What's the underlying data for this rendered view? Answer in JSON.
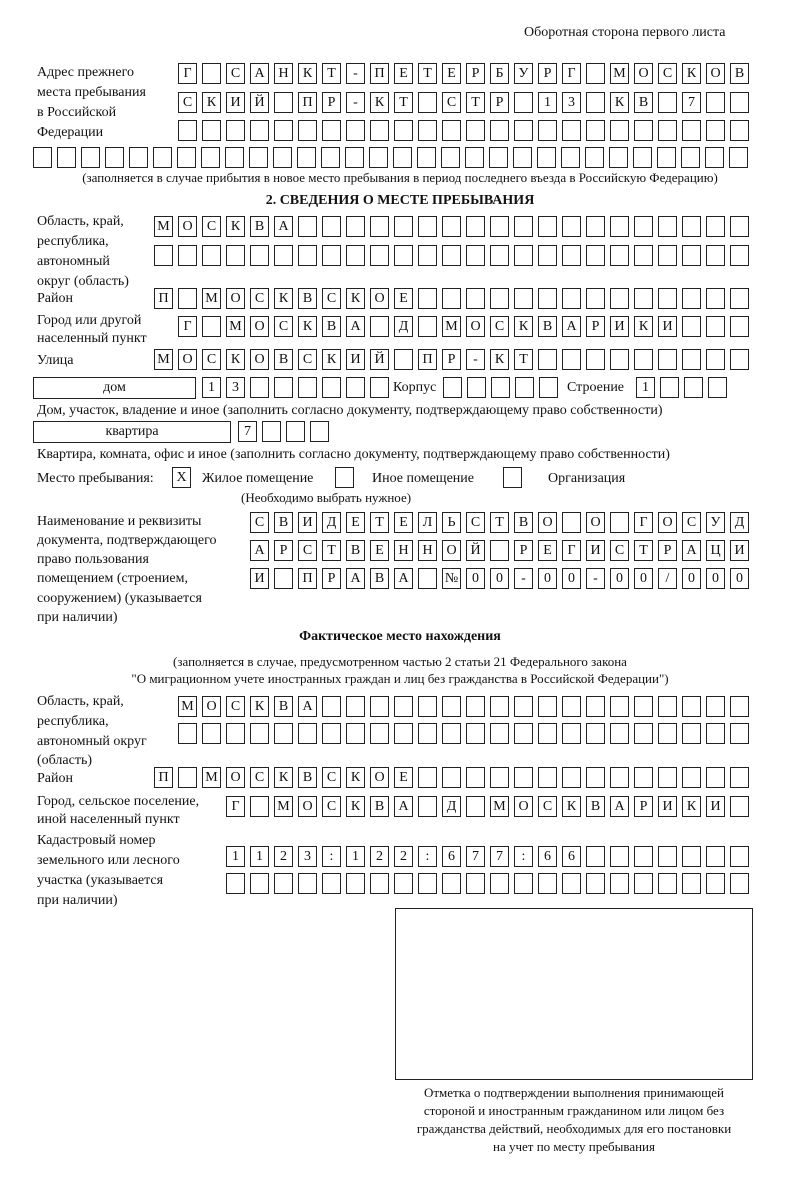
{
  "header": "Оборотная сторона первого листа",
  "prev_address": {
    "label": [
      "Адрес прежнего",
      "места пребывания",
      "в Российской",
      "Федерации"
    ],
    "rows": [
      [
        "Г",
        "",
        "С",
        "А",
        "Н",
        "К",
        "Т",
        "-",
        "П",
        "Е",
        "Т",
        "Е",
        "Р",
        "Б",
        "У",
        "Р",
        "Г",
        "",
        "М",
        "О",
        "С",
        "К",
        "О",
        "В"
      ],
      [
        "С",
        "К",
        "И",
        "Й",
        "",
        "П",
        "Р",
        "-",
        "К",
        "Т",
        "",
        "С",
        "Т",
        "Р",
        "",
        "1",
        "3",
        "",
        "К",
        "В",
        "",
        "7",
        "",
        ""
      ],
      [
        "",
        "",
        "",
        "",
        "",
        "",
        "",
        "",
        "",
        "",
        "",
        "",
        "",
        "",
        "",
        "",
        "",
        "",
        "",
        "",
        "",
        "",
        "",
        ""
      ],
      [
        "",
        "",
        "",
        "",
        "",
        "",
        "",
        "",
        "",
        "",
        "",
        "",
        "",
        "",
        "",
        "",
        "",
        "",
        "",
        "",
        "",
        "",
        "",
        "",
        "",
        "",
        "",
        "",
        "",
        ""
      ]
    ],
    "note": "(заполняется в случае прибытия в новое место пребывания в период последнего въезда в Российскую Федерацию)"
  },
  "section2": {
    "title": "2. СВЕДЕНИЯ О МЕСТЕ ПРЕБЫВАНИЯ",
    "region_label": [
      "Область, край,",
      "республика,",
      "автономный",
      "округ (область)"
    ],
    "region_rows": [
      [
        "М",
        "О",
        "С",
        "К",
        "В",
        "А",
        "",
        "",
        "",
        "",
        "",
        "",
        "",
        "",
        "",
        "",
        "",
        "",
        "",
        "",
        "",
        "",
        "",
        "",
        ""
      ],
      [
        "",
        "",
        "",
        "",
        "",
        "",
        "",
        "",
        "",
        "",
        "",
        "",
        "",
        "",
        "",
        "",
        "",
        "",
        "",
        "",
        "",
        "",
        "",
        "",
        ""
      ]
    ],
    "district_label": "Район",
    "district": [
      "П",
      "",
      "М",
      "О",
      "С",
      "К",
      "В",
      "С",
      "К",
      "О",
      "Е",
      "",
      "",
      "",
      "",
      "",
      "",
      "",
      "",
      "",
      "",
      "",
      "",
      "",
      ""
    ],
    "city_label": [
      "Город или другой",
      "населенный пункт"
    ],
    "city": [
      "Г",
      "",
      "М",
      "О",
      "С",
      "К",
      "В",
      "А",
      "",
      "Д",
      "",
      "М",
      "О",
      "С",
      "К",
      "В",
      "А",
      "Р",
      "И",
      "К",
      "И",
      "",
      "",
      ""
    ],
    "street_label": "Улица",
    "street": [
      "М",
      "О",
      "С",
      "К",
      "О",
      "В",
      "С",
      "К",
      "И",
      "Й",
      "",
      "П",
      "Р",
      "-",
      "К",
      "Т",
      "",
      "",
      "",
      "",
      "",
      "",
      "",
      "",
      ""
    ],
    "house_type": "дом",
    "house": [
      "1",
      "3",
      "",
      "",
      "",
      "",
      "",
      ""
    ],
    "korpus_label": "Корпус",
    "korpus": [
      "",
      "",
      "",
      "",
      ""
    ],
    "stroenie_label": "Строение",
    "stroenie": [
      "1",
      "",
      "",
      ""
    ],
    "house_note": "Дом, участок, владение и иное (заполнить согласно документу, подтверждающему право собственности)",
    "flat_type": "квартира",
    "flat": [
      "7",
      "",
      "",
      ""
    ],
    "flat_note": "Квартира, комната, офис и иное (заполнить согласно документу, подтверждающему право собственности)",
    "stay_label": "Место пребывания:",
    "stay_options": [
      {
        "label": "Жилое помещение",
        "mark": "X"
      },
      {
        "label": "Иное помещение",
        "mark": ""
      },
      {
        "label": "Организация",
        "mark": ""
      }
    ],
    "stay_note": "(Необходимо выбрать нужное)",
    "doc_label": [
      "Наименование и реквизиты",
      "документа, подтверждающего",
      "право пользования",
      "помещением (строением,",
      "сооружением) (указывается",
      "при наличии)"
    ],
    "doc_rows": [
      [
        "С",
        "В",
        "И",
        "Д",
        "Е",
        "Т",
        "Е",
        "Л",
        "Ь",
        "С",
        "Т",
        "В",
        "О",
        "",
        "О",
        "",
        "Г",
        "О",
        "С",
        "У",
        "Д"
      ],
      [
        "А",
        "Р",
        "С",
        "Т",
        "В",
        "Е",
        "Н",
        "Н",
        "О",
        "Й",
        "",
        "Р",
        "Е",
        "Г",
        "И",
        "С",
        "Т",
        "Р",
        "А",
        "Ц",
        "И"
      ],
      [
        "И",
        "",
        "П",
        "Р",
        "А",
        "В",
        "А",
        "",
        "№",
        "0",
        "0",
        "-",
        "0",
        "0",
        "-",
        "0",
        "0",
        "/",
        "0",
        "0",
        "0"
      ]
    ]
  },
  "actual": {
    "title": "Фактическое место нахождения",
    "note": [
      "(заполняется в случае, предусмотренном частью 2 статьи 21 Федерального закона",
      "\"О миграционном учете иностранных граждан и лиц без гражданства в Российской Федерации\")"
    ],
    "region_label": [
      "Область, край,",
      "республика,",
      "автономный округ",
      "(область)"
    ],
    "region_rows": [
      [
        "М",
        "О",
        "С",
        "К",
        "В",
        "А",
        "",
        "",
        "",
        "",
        "",
        "",
        "",
        "",
        "",
        "",
        "",
        "",
        "",
        "",
        "",
        "",
        "",
        ""
      ],
      [
        "",
        "",
        "",
        "",
        "",
        "",
        "",
        "",
        "",
        "",
        "",
        "",
        "",
        "",
        "",
        "",
        "",
        "",
        "",
        "",
        "",
        "",
        "",
        ""
      ]
    ],
    "district_label": "Район",
    "district": [
      "П",
      "",
      "М",
      "О",
      "С",
      "К",
      "В",
      "С",
      "К",
      "О",
      "Е",
      "",
      "",
      "",
      "",
      "",
      "",
      "",
      "",
      "",
      "",
      "",
      "",
      "",
      ""
    ],
    "city_label": [
      "Город, сельское поселение,",
      "иной населенный пункт"
    ],
    "city": [
      "Г",
      "",
      "М",
      "О",
      "С",
      "К",
      "В",
      "А",
      "",
      "Д",
      "",
      "М",
      "О",
      "С",
      "К",
      "В",
      "А",
      "Р",
      "И",
      "К",
      "И",
      ""
    ],
    "cadastre_label": [
      "Кадастровый номер",
      "земельного или лесного",
      "участка (указывается",
      "при наличии)"
    ],
    "cadastre_rows": [
      [
        "1",
        "1",
        "2",
        "3",
        ":",
        "1",
        "2",
        "2",
        ":",
        "6",
        "7",
        "7",
        ":",
        "6",
        "6",
        "",
        "",
        "",
        "",
        "",
        "",
        ""
      ],
      [
        "",
        "",
        "",
        "",
        "",
        "",
        "",
        "",
        "",
        "",
        "",
        "",
        "",
        "",
        "",
        "",
        "",
        "",
        "",
        "",
        "",
        ""
      ]
    ]
  },
  "stamp_caption": [
    "Отметка о подтверждении выполнения принимающей",
    "стороной и иностранным гражданином или лицом без",
    "гражданства действий, необходимых для его постановки",
    "на учет по месту пребывания"
  ]
}
